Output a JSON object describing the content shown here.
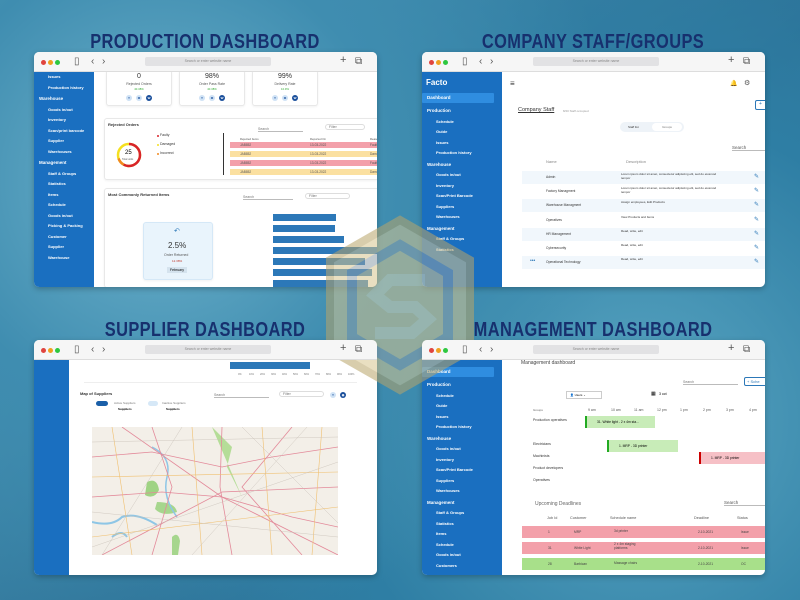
{
  "headings": [
    "PRODUCTION DASHBOARD",
    "COMPANY STAFF/GROUPS",
    "SUPPLIER DASHBOARD",
    "MANAGEMENT DASHBOARD"
  ],
  "browser": {
    "url_placeholder": "Search or enter website name"
  },
  "colors": {
    "sidebar": "#1a6fc0",
    "heading": "#17306e",
    "faulty": "#f3a0aa",
    "damaged": "#fbe0a0",
    "ok": "#a8e08a"
  },
  "production": {
    "sidebar": [
      {
        "label": "Issues"
      },
      {
        "label": "Production history"
      },
      {
        "label": "Warehouse",
        "header": true
      },
      {
        "label": "Goods in/out"
      },
      {
        "label": "Inventory"
      },
      {
        "label": "Scan/print barcode"
      },
      {
        "label": "Supplier"
      },
      {
        "label": "Warehouses"
      },
      {
        "label": "Management",
        "header": true
      },
      {
        "label": "Staff & Groups"
      },
      {
        "label": "Statistics"
      },
      {
        "label": "Items"
      },
      {
        "label": "Schedule"
      },
      {
        "label": "Goods in/out"
      },
      {
        "label": "Picking & Packing"
      },
      {
        "label": "Customer"
      },
      {
        "label": "Supplier"
      },
      {
        "label": "Warehouse"
      }
    ],
    "kpis": [
      {
        "value": "0",
        "label": "Rejected Orders",
        "change": "40.38%"
      },
      {
        "value": "98%",
        "label": "Order Pass Rate",
        "change": "40.38%"
      },
      {
        "value": "99%",
        "label": "Delivery Rate",
        "change": "10.9%"
      }
    ],
    "period_buttons": [
      "Y",
      "M",
      "W"
    ],
    "rejected": {
      "title": "Rejected Orders",
      "total": "25",
      "total_label": "Total units",
      "legend": [
        "Faulty",
        "Damaged",
        "Incorrect"
      ],
      "search": "Search",
      "filter": "Filter",
      "columns": [
        "Rejected Items",
        "Reported On",
        "Reason"
      ],
      "rows": [
        [
          "JAB852",
          "13-03-2022",
          "Faulty"
        ],
        [
          "JAB852",
          "13-03-2022",
          "Damaged"
        ],
        [
          "JAB852",
          "13-03-2022",
          "Faulty"
        ],
        [
          "JAB852",
          "13-03-2022",
          "Damaged"
        ]
      ]
    },
    "returned": {
      "title": "Most Commonly Returned Items",
      "search": "Search",
      "filter": "Filter",
      "rate": "2.5%",
      "rate_label": "Order Returned",
      "change": "12.38%",
      "month": "February"
    }
  },
  "chart_data": {
    "type": "bar",
    "orientation": "horizontal",
    "values": [
      42,
      41,
      47,
      71,
      61,
      66,
      63
    ],
    "xlim": [
      0,
      100
    ]
  },
  "staff": {
    "logo": "Facto",
    "sidebar": [
      {
        "label": "Dashboard",
        "header": true,
        "active": true
      },
      {
        "label": "Production",
        "header": true
      },
      {
        "label": "Schedule"
      },
      {
        "label": "Guide"
      },
      {
        "label": "Issues"
      },
      {
        "label": "Production history"
      },
      {
        "label": "Warehouse",
        "header": true
      },
      {
        "label": "Goods in/out"
      },
      {
        "label": "Inventory"
      },
      {
        "label": "Scan/Print Barcode"
      },
      {
        "label": "Suppliers"
      },
      {
        "label": "Warehouses"
      },
      {
        "label": "Management",
        "header": true
      },
      {
        "label": "Staff & Groups"
      },
      {
        "label": "Statistics"
      }
    ],
    "title": "Company Staff",
    "subtitle": "8/20 Staff occupied",
    "tabs": [
      "Staff list",
      "Groups"
    ],
    "search": "Search",
    "columns": [
      "Name",
      "Description",
      "Action"
    ],
    "rows": [
      [
        "Admin",
        "Lorem ipsum dolor sit amet, consectetur adipiscing elit, sed do eiusmod tempor"
      ],
      [
        "Factory Managment",
        "Lorem ipsum dolor sit amet, consectetur adipiscing elit, sed do eiusmod tempor"
      ],
      [
        "Warehouse Managment",
        "Assign employees, Edit Products"
      ],
      [
        "Operatives",
        "View Products and Items"
      ],
      [
        "HR Management",
        "Read, write, edit"
      ],
      [
        "Cybersecurity",
        "Read, write, edit"
      ],
      [
        "Operational Technology",
        "Read, write, edit"
      ]
    ]
  },
  "supplier": {
    "axis": [
      "0%",
      "10%",
      "20%",
      "30%",
      "40%",
      "50%",
      "60%",
      "70%",
      "80%",
      "90%",
      "100%"
    ],
    "title": "Map of Suppliers",
    "search": "Search",
    "filter": "Filter",
    "legend": [
      {
        "label": "Active Suppliers",
        "sub": "Suppliers"
      },
      {
        "label": "Inactive Suppliers",
        "sub": "Suppliers"
      }
    ]
  },
  "management": {
    "sidebar": [
      {
        "label": "Dashboard",
        "header": true,
        "active": true
      },
      {
        "label": "Production",
        "header": true
      },
      {
        "label": "Schedule"
      },
      {
        "label": "Guide"
      },
      {
        "label": "Issues"
      },
      {
        "label": "Production history"
      },
      {
        "label": "Warehouse",
        "header": true
      },
      {
        "label": "Goods in/out"
      },
      {
        "label": "Inventory"
      },
      {
        "label": "Scan/Print Barcode"
      },
      {
        "label": "Suppliers"
      },
      {
        "label": "Warehouses"
      },
      {
        "label": "Management",
        "header": true
      },
      {
        "label": "Staff & Groups"
      },
      {
        "label": "Statistics"
      },
      {
        "label": "Items"
      },
      {
        "label": "Schedule"
      },
      {
        "label": "Goods in/out"
      },
      {
        "label": "Customers"
      }
    ],
    "title": "Management dashboard",
    "search": "Search",
    "add": "+ Sche",
    "users": "Users",
    "date": "3 oct",
    "times": [
      "9 am",
      "10 am",
      "11 am",
      "12 pm",
      "1 pm",
      "2 pm",
      "3 pm",
      "4 pm"
    ],
    "groups_label": "Groups",
    "groups": [
      "Production operatives",
      "Electricians",
      "Machinists",
      "Product developers",
      "Operatives"
    ],
    "events": [
      "31. White light - 2 x 4m sta...",
      "1. MRP - 3D printer",
      "1. MRP - 3D printer"
    ],
    "deadlines": {
      "title": "Upcoming Deadlines",
      "search": "Search",
      "columns": [
        "Job Id",
        "Customer",
        "Schedule name",
        "Deadline",
        "Status"
      ],
      "rows": [
        [
          "1",
          "MRP",
          "3d printer",
          "2-10-2021",
          "Issue"
        ],
        [
          "31",
          "White Light",
          "2 x 4m staging platforms",
          "2-10-2021",
          "Issue"
        ],
        [
          "28",
          "Barbican",
          "Massage chairs",
          "2-10-2021",
          "OC"
        ]
      ]
    }
  }
}
